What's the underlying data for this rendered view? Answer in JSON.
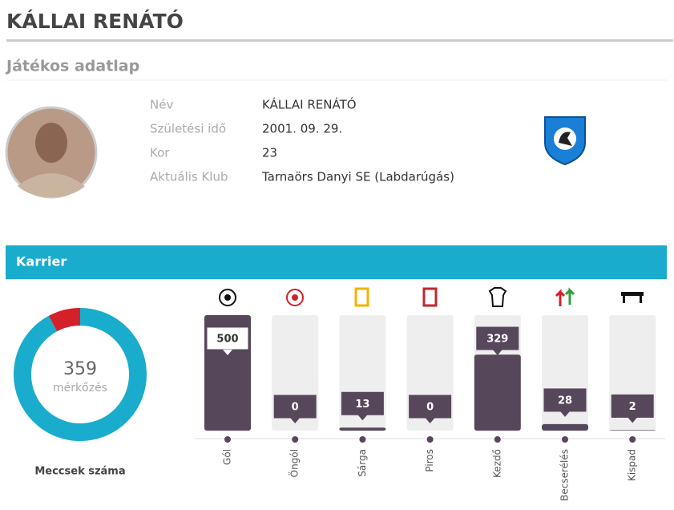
{
  "header": {
    "title": "KÁLLAI RENÁTÓ",
    "subtitle": "Játékos adatlap"
  },
  "profile": {
    "rows": [
      {
        "label": "Név",
        "value": "KÁLLAI RENÁTÓ"
      },
      {
        "label": "Születési idő",
        "value": "2001. 09. 29."
      },
      {
        "label": "Kor",
        "value": "23"
      },
      {
        "label": "Aktuális Klub",
        "value": "Tarnaörs Danyi SE (Labdarúgás)"
      }
    ]
  },
  "career": {
    "title": "Karrier"
  },
  "chart_data": [
    {
      "type": "donut",
      "total": 359,
      "center_label": "mérkőzés",
      "caption": "Meccsek száma",
      "values": [
        329,
        28
      ],
      "colors": [
        "#1aaccc",
        "#d42027"
      ]
    },
    {
      "type": "bar",
      "categories": [
        "Gól",
        "Öngól",
        "Sárga",
        "Piros",
        "Kezdő",
        "Becserélés",
        "Kispad"
      ],
      "values": [
        500,
        0,
        13,
        0,
        329,
        28,
        2
      ],
      "color": "#56475a",
      "ylim": [
        0,
        500
      ]
    }
  ]
}
